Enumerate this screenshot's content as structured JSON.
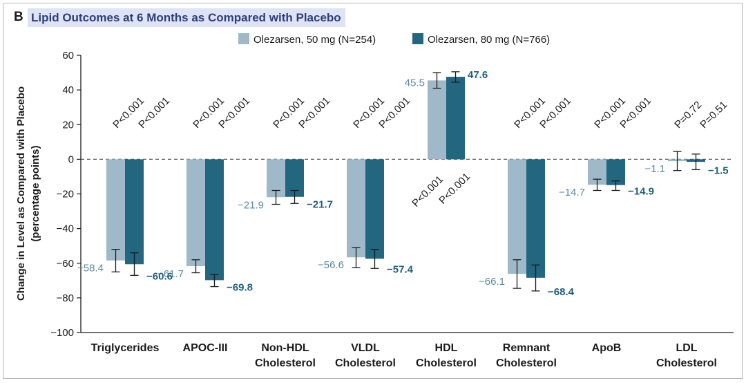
{
  "figure": {
    "panel_letter": "B",
    "title": "Lipid Outcomes at 6 Months as Compared with Placebo"
  },
  "colors": {
    "series_50mg": "#9fb9c8",
    "series_80mg": "#22667f",
    "label_50mg": "#5b89a3",
    "label_80mg": "#1f5f78",
    "axis": "#1a1a1a"
  },
  "chart_data": {
    "type": "bar",
    "title": "Lipid Outcomes at 6 Months as Compared with Placebo",
    "ylabel": "Change in Level as Compared with Placebo (percentage points)",
    "ylabel_lines": [
      "Change in Level as Compared with Placebo",
      "(percentage points)"
    ],
    "ylim": [
      -100,
      60
    ],
    "yticks": [
      60,
      40,
      20,
      0,
      -20,
      -40,
      -60,
      -80,
      -100
    ],
    "ytick_labels": [
      "60",
      "40",
      "20",
      "0",
      "−20",
      "−40",
      "−60",
      "−80",
      "−100"
    ],
    "grid": false,
    "legend_position": "top-center",
    "categories": [
      [
        "Triglycerides"
      ],
      [
        "APOC-III"
      ],
      [
        "Non-HDL",
        "Cholesterol"
      ],
      [
        "VLDL",
        "Cholesterol"
      ],
      [
        "HDL",
        "Cholesterol"
      ],
      [
        "Remnant",
        "Cholesterol"
      ],
      [
        "ApoB"
      ],
      [
        "LDL",
        "Cholesterol"
      ]
    ],
    "series": [
      {
        "name": "Olezarsen, 50 mg (N=254)",
        "values": [
          -58.4,
          -61.7,
          -21.9,
          -56.6,
          45.5,
          -66.1,
          -14.7,
          -1.1
        ],
        "value_labels": [
          "−58.4",
          "−61.7",
          "−21.9",
          "−56.6",
          "45.5",
          "−66.1",
          "−14.7",
          "−1.1"
        ],
        "error_low": [
          -65,
          -65.5,
          -26,
          -62.5,
          41,
          -74.5,
          -18,
          -6.5
        ],
        "error_high": [
          -52,
          -58,
          -18,
          -51,
          50,
          -58,
          -11.5,
          4.5
        ],
        "p_values": [
          "P<0.001",
          "P<0.001",
          "P<0.001",
          "P<0.001",
          "P<0.001",
          "P<0.001",
          "P<0.001",
          "P=0.72"
        ]
      },
      {
        "name": "Olezarsen, 80 mg (N=766)",
        "values": [
          -60.6,
          -69.8,
          -21.7,
          -57.4,
          47.6,
          -68.4,
          -14.9,
          -1.5
        ],
        "value_labels": [
          "−60.6",
          "−69.8",
          "−21.7",
          "−57.4",
          "47.6",
          "−68.4",
          "−14.9",
          "−1.5"
        ],
        "error_low": [
          -67,
          -73.5,
          -25.5,
          -63,
          44.5,
          -76,
          -18,
          -6
        ],
        "error_high": [
          -54,
          -66.5,
          -18,
          -52,
          50.5,
          -61,
          -12.5,
          3
        ],
        "p_values": [
          "P<0.001",
          "P<0.001",
          "P<0.001",
          "P<0.001",
          "P<0.001",
          "P<0.001",
          "P<0.001",
          "P=0.51"
        ]
      }
    ]
  }
}
